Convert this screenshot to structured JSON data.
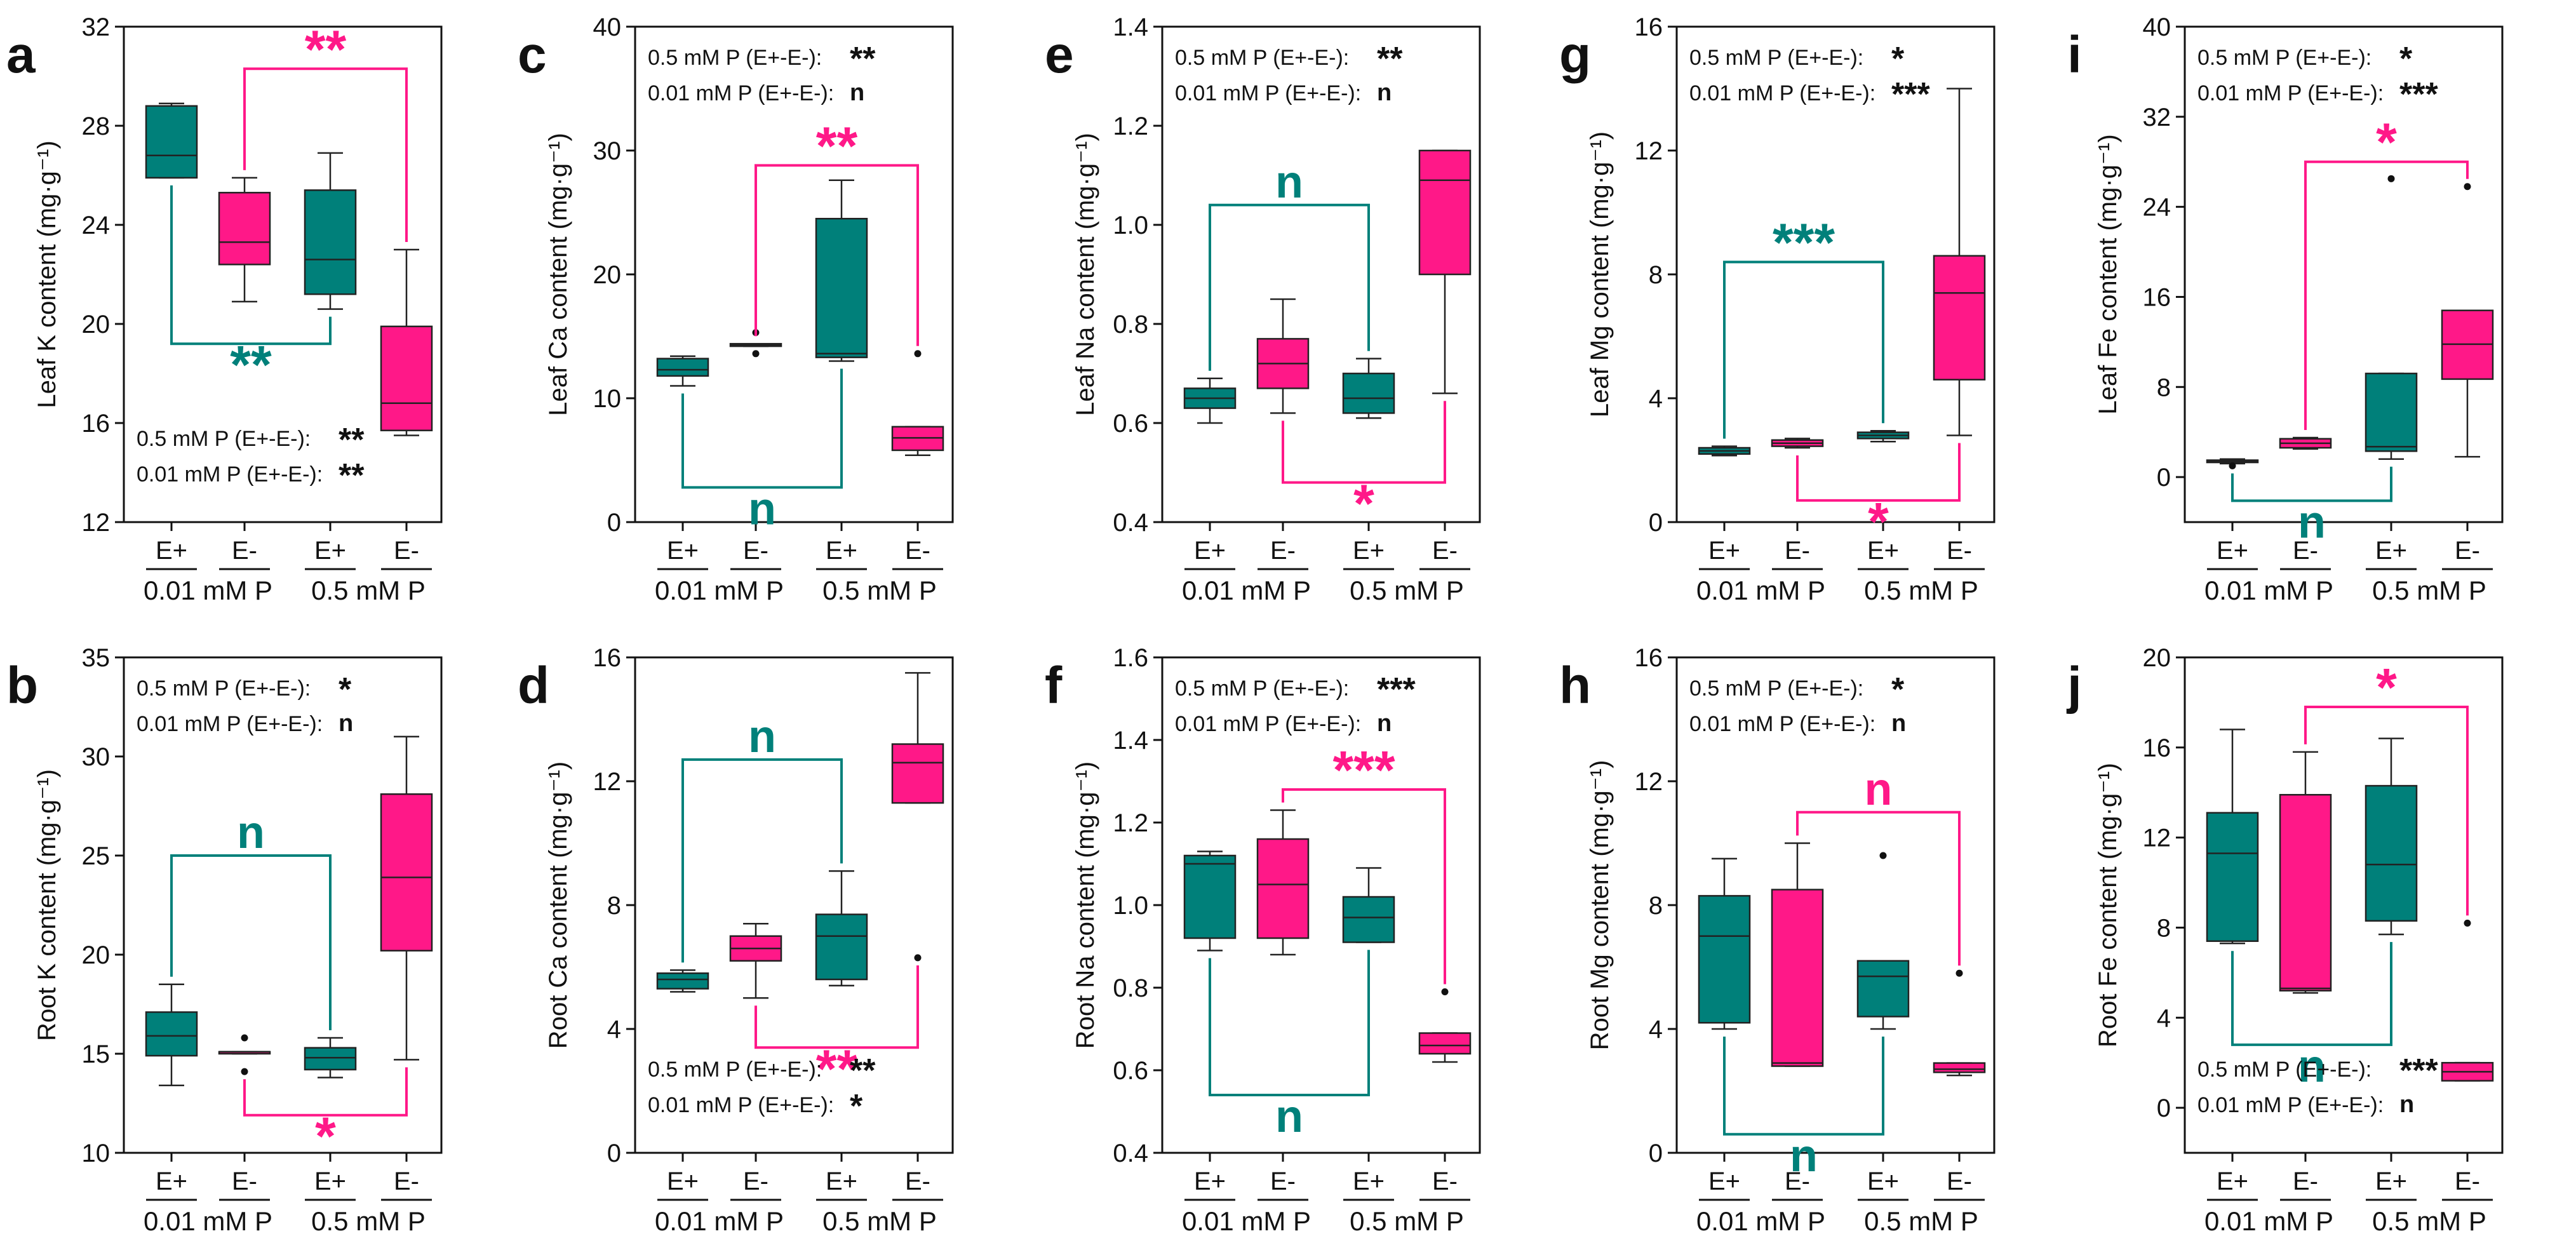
{
  "colors": {
    "e_plus": "#00807A",
    "e_minus": "#FF1888",
    "axis": "#111111",
    "stat_text": "#111111"
  },
  "group_labels": {
    "low": "0.01 mM P",
    "high": "0.5 mM P"
  },
  "treatment_labels": [
    "E+",
    "E-",
    "E+",
    "E-"
  ],
  "chart_data": [
    {
      "panel": "a",
      "type": "box",
      "ylabel": "Leaf K content (mg·g⁻¹)",
      "ylim": [
        12,
        32
      ],
      "yticks": [
        12,
        16,
        20,
        24,
        28,
        32
      ],
      "boxes": [
        {
          "label": "E+",
          "group": "0.01 mM P",
          "min": 25.9,
          "q1": 25.9,
          "median": 26.8,
          "q3": 28.8,
          "max": 28.9,
          "outliers": []
        },
        {
          "label": "E-",
          "group": "0.01 mM P",
          "min": 20.9,
          "q1": 22.4,
          "median": 23.3,
          "q3": 25.3,
          "max": 25.9,
          "outliers": []
        },
        {
          "label": "E+",
          "group": "0.5 mM P",
          "min": 20.6,
          "q1": 21.2,
          "median": 22.6,
          "q3": 25.4,
          "max": 26.9,
          "outliers": []
        },
        {
          "label": "E-",
          "group": "0.5 mM P",
          "min": 15.5,
          "q1": 15.7,
          "median": 16.8,
          "q3": 19.9,
          "max": 23.0,
          "outliers": []
        }
      ],
      "brackets": [
        {
          "pair": [
            0,
            2
          ],
          "side": "below",
          "y": 19.2,
          "label": "**",
          "color": "e_plus"
        },
        {
          "pair": [
            1,
            3
          ],
          "side": "above",
          "y": 30.3,
          "label": "**",
          "color": "e_minus"
        }
      ],
      "legend_pos": "bottom-left",
      "stats": [
        {
          "label": "0.5 mM P (E+-E-):",
          "sig": "**"
        },
        {
          "label": "0.01 mM P (E+-E-):",
          "sig": "**"
        }
      ]
    },
    {
      "panel": "b",
      "type": "box",
      "ylabel": "Root K content (mg·g⁻¹)",
      "ylim": [
        10,
        35
      ],
      "yticks": [
        10,
        15,
        20,
        25,
        30,
        35
      ],
      "boxes": [
        {
          "label": "E+",
          "group": "0.01 mM P",
          "min": 13.4,
          "q1": 14.9,
          "median": 15.9,
          "q3": 17.1,
          "max": 18.5,
          "outliers": []
        },
        {
          "label": "E-",
          "group": "0.01 mM P",
          "min": 15.0,
          "q1": 15.0,
          "median": 15.1,
          "q3": 15.1,
          "max": 15.1,
          "outliers": [
            15.8,
            14.1
          ]
        },
        {
          "label": "E+",
          "group": "0.5 mM P",
          "min": 13.8,
          "q1": 14.2,
          "median": 14.8,
          "q3": 15.3,
          "max": 15.8,
          "outliers": []
        },
        {
          "label": "E-",
          "group": "0.5 mM P",
          "min": 14.7,
          "q1": 20.2,
          "median": 23.9,
          "q3": 28.1,
          "max": 31.0,
          "outliers": []
        }
      ],
      "brackets": [
        {
          "pair": [
            0,
            2
          ],
          "side": "above",
          "y": 25.0,
          "label": "n",
          "color": "e_plus"
        },
        {
          "pair": [
            1,
            3
          ],
          "side": "below",
          "y": 11.9,
          "label": "*",
          "color": "e_minus"
        }
      ],
      "legend_pos": "top-left",
      "stats": [
        {
          "label": "0.5 mM P (E+-E-):",
          "sig": "*"
        },
        {
          "label": "0.01 mM P (E+-E-):",
          "sig": "n"
        }
      ]
    },
    {
      "panel": "c",
      "type": "box",
      "ylabel": "Leaf Ca content (mg·g⁻¹)",
      "ylim": [
        0,
        40
      ],
      "yticks": [
        0,
        10,
        20,
        30,
        40
      ],
      "boxes": [
        {
          "label": "E+",
          "group": "0.01 mM P",
          "min": 11.0,
          "q1": 11.8,
          "median": 12.3,
          "q3": 13.2,
          "max": 13.4,
          "outliers": []
        },
        {
          "label": "E-",
          "group": "0.01 mM P",
          "min": 14.2,
          "q1": 14.2,
          "median": 14.3,
          "q3": 14.4,
          "max": 14.4,
          "outliers": [
            15.3,
            13.6
          ]
        },
        {
          "label": "E+",
          "group": "0.5 mM P",
          "min": 13.0,
          "q1": 13.3,
          "median": 13.6,
          "q3": 24.5,
          "max": 27.6,
          "outliers": []
        },
        {
          "label": "E-",
          "group": "0.5 mM P",
          "min": 5.4,
          "q1": 5.8,
          "median": 6.8,
          "q3": 7.7,
          "max": 7.7,
          "outliers": [
            13.6
          ]
        }
      ],
      "brackets": [
        {
          "pair": [
            0,
            2
          ],
          "side": "below",
          "y": 2.8,
          "label": "n",
          "color": "e_plus"
        },
        {
          "pair": [
            1,
            3
          ],
          "side": "above",
          "y": 28.8,
          "label": "**",
          "color": "e_minus"
        }
      ],
      "legend_pos": "top-left",
      "stats": [
        {
          "label": "0.5 mM P (E+-E-):",
          "sig": "**"
        },
        {
          "label": "0.01 mM P (E+-E-):",
          "sig": "n"
        }
      ]
    },
    {
      "panel": "d",
      "type": "box",
      "ylabel": "Root Ca content (mg·g⁻¹)",
      "ylim": [
        0,
        16
      ],
      "yticks": [
        0,
        4,
        8,
        12,
        16
      ],
      "boxes": [
        {
          "label": "E+",
          "group": "0.01 mM P",
          "min": 5.2,
          "q1": 5.3,
          "median": 5.6,
          "q3": 5.8,
          "max": 5.9,
          "outliers": []
        },
        {
          "label": "E-",
          "group": "0.01 mM P",
          "min": 5.0,
          "q1": 6.2,
          "median": 6.6,
          "q3": 7.0,
          "max": 7.4,
          "outliers": []
        },
        {
          "label": "E+",
          "group": "0.5 mM P",
          "min": 5.4,
          "q1": 5.6,
          "median": 7.0,
          "q3": 7.7,
          "max": 9.1,
          "outliers": []
        },
        {
          "label": "E-",
          "group": "0.5 mM P",
          "min": 11.3,
          "q1": 11.3,
          "median": 12.6,
          "q3": 13.2,
          "max": 15.5,
          "outliers": [
            6.3
          ]
        }
      ],
      "brackets": [
        {
          "pair": [
            0,
            2
          ],
          "side": "above",
          "y": 12.7,
          "label": "n",
          "color": "e_plus"
        },
        {
          "pair": [
            1,
            3
          ],
          "side": "below",
          "y": 3.4,
          "label": "**",
          "color": "e_minus"
        }
      ],
      "legend_pos": "bottom-left",
      "stats": [
        {
          "label": "0.5 mM P (E+-E-):",
          "sig": "**"
        },
        {
          "label": "0.01 mM P (E+-E-):",
          "sig": "*"
        }
      ]
    },
    {
      "panel": "e",
      "type": "box",
      "ylabel": "Leaf Na content (mg·g⁻¹)",
      "ylim": [
        0.4,
        1.4
      ],
      "yticks": [
        0.4,
        0.6,
        0.8,
        1.0,
        1.2,
        1.4
      ],
      "boxes": [
        {
          "label": "E+",
          "group": "0.01 mM P",
          "min": 0.6,
          "q1": 0.63,
          "median": 0.65,
          "q3": 0.67,
          "max": 0.69,
          "outliers": []
        },
        {
          "label": "E-",
          "group": "0.01 mM P",
          "min": 0.62,
          "q1": 0.67,
          "median": 0.72,
          "q3": 0.77,
          "max": 0.85,
          "outliers": []
        },
        {
          "label": "E+",
          "group": "0.5 mM P",
          "min": 0.61,
          "q1": 0.62,
          "median": 0.65,
          "q3": 0.7,
          "max": 0.73,
          "outliers": []
        },
        {
          "label": "E-",
          "group": "0.5 mM P",
          "min": 0.66,
          "q1": 0.9,
          "median": 1.09,
          "q3": 1.15,
          "max": 1.15,
          "outliers": []
        }
      ],
      "brackets": [
        {
          "pair": [
            0,
            2
          ],
          "side": "above",
          "y": 1.04,
          "label": "n",
          "color": "e_plus"
        },
        {
          "pair": [
            1,
            3
          ],
          "side": "below",
          "y": 0.48,
          "label": "*",
          "color": "e_minus"
        }
      ],
      "legend_pos": "top-left",
      "stats": [
        {
          "label": "0.5 mM P (E+-E-):",
          "sig": "**"
        },
        {
          "label": "0.01 mM P (E+-E-):",
          "sig": "n"
        }
      ]
    },
    {
      "panel": "f",
      "type": "box",
      "ylabel": "Root Na content (mg·g⁻¹)",
      "ylim": [
        0.4,
        1.6
      ],
      "yticks": [
        0.4,
        0.6,
        0.8,
        1.0,
        1.2,
        1.4,
        1.6
      ],
      "boxes": [
        {
          "label": "E+",
          "group": "0.01 mM P",
          "min": 0.89,
          "q1": 0.92,
          "median": 1.1,
          "q3": 1.12,
          "max": 1.13,
          "outliers": []
        },
        {
          "label": "E-",
          "group": "0.01 mM P",
          "min": 0.88,
          "q1": 0.92,
          "median": 1.05,
          "q3": 1.16,
          "max": 1.23,
          "outliers": []
        },
        {
          "label": "E+",
          "group": "0.5 mM P",
          "min": 0.91,
          "q1": 0.91,
          "median": 0.97,
          "q3": 1.02,
          "max": 1.09,
          "outliers": []
        },
        {
          "label": "E-",
          "group": "0.5 mM P",
          "min": 0.62,
          "q1": 0.64,
          "median": 0.66,
          "q3": 0.69,
          "max": 0.69,
          "outliers": [
            0.79
          ]
        }
      ],
      "brackets": [
        {
          "pair": [
            0,
            2
          ],
          "side": "below",
          "y": 0.54,
          "label": "n",
          "color": "e_plus"
        },
        {
          "pair": [
            1,
            3
          ],
          "side": "above",
          "y": 1.28,
          "label": "***",
          "color": "e_minus"
        }
      ],
      "legend_pos": "top-left",
      "stats": [
        {
          "label": "0.5 mM P (E+-E-):",
          "sig": "***"
        },
        {
          "label": "0.01 mM P (E+-E-):",
          "sig": "n"
        }
      ]
    },
    {
      "panel": "g",
      "type": "box",
      "ylabel": "Leaf Mg content (mg·g⁻¹)",
      "ylim": [
        0,
        16
      ],
      "yticks": [
        0,
        4,
        8,
        12,
        16
      ],
      "boxes": [
        {
          "label": "E+",
          "group": "0.01 mM P",
          "min": 2.15,
          "q1": 2.2,
          "median": 2.3,
          "q3": 2.4,
          "max": 2.45,
          "outliers": []
        },
        {
          "label": "E-",
          "group": "0.01 mM P",
          "min": 2.4,
          "q1": 2.45,
          "median": 2.55,
          "q3": 2.65,
          "max": 2.7,
          "outliers": []
        },
        {
          "label": "E+",
          "group": "0.5 mM P",
          "min": 2.6,
          "q1": 2.7,
          "median": 2.8,
          "q3": 2.9,
          "max": 2.95,
          "outliers": []
        },
        {
          "label": "E-",
          "group": "0.5 mM P",
          "min": 2.8,
          "q1": 4.6,
          "median": 7.4,
          "q3": 8.6,
          "max": 14.0,
          "outliers": []
        }
      ],
      "brackets": [
        {
          "pair": [
            0,
            2
          ],
          "side": "above",
          "y": 8.4,
          "label": "***",
          "color": "e_plus"
        },
        {
          "pair": [
            1,
            3
          ],
          "side": "below",
          "y": 0.7,
          "label": "*",
          "color": "e_minus"
        }
      ],
      "legend_pos": "top-left",
      "stats": [
        {
          "label": "0.5 mM P (E+-E-):",
          "sig": "*"
        },
        {
          "label": "0.01 mM P (E+-E-):",
          "sig": "***"
        }
      ]
    },
    {
      "panel": "h",
      "type": "box",
      "ylabel": "Root Mg content (mg·g⁻¹)",
      "ylim": [
        0,
        16
      ],
      "yticks": [
        0,
        4,
        8,
        12,
        16
      ],
      "boxes": [
        {
          "label": "E+",
          "group": "0.01 mM P",
          "min": 4.0,
          "q1": 4.2,
          "median": 7.0,
          "q3": 8.3,
          "max": 9.5,
          "outliers": []
        },
        {
          "label": "E-",
          "group": "0.01 mM P",
          "min": 2.8,
          "q1": 2.8,
          "median": 2.9,
          "q3": 8.5,
          "max": 10.0,
          "outliers": []
        },
        {
          "label": "E+",
          "group": "0.5 mM P",
          "min": 4.0,
          "q1": 4.4,
          "median": 5.7,
          "q3": 6.2,
          "max": 6.2,
          "outliers": [
            9.6
          ]
        },
        {
          "label": "E-",
          "group": "0.5 mM P",
          "min": 2.5,
          "q1": 2.6,
          "median": 2.7,
          "q3": 2.9,
          "max": 2.9,
          "outliers": [
            5.8
          ]
        }
      ],
      "brackets": [
        {
          "pair": [
            0,
            2
          ],
          "side": "below",
          "y": 0.6,
          "label": "n",
          "color": "e_plus"
        },
        {
          "pair": [
            1,
            3
          ],
          "side": "above",
          "y": 11.0,
          "label": "n",
          "color": "e_minus"
        }
      ],
      "legend_pos": "top-left",
      "stats": [
        {
          "label": "0.5 mM P (E+-E-):",
          "sig": "*"
        },
        {
          "label": "0.01 mM P (E+-E-):",
          "sig": "n"
        }
      ]
    },
    {
      "panel": "i",
      "type": "box",
      "ylabel": "Leaf Fe content (mg·g⁻¹)",
      "ylim": [
        -4,
        40
      ],
      "yticks": [
        0,
        8,
        16,
        24,
        32,
        40
      ],
      "boxes": [
        {
          "label": "E+",
          "group": "0.01 mM P",
          "min": 1.2,
          "q1": 1.3,
          "median": 1.4,
          "q3": 1.5,
          "max": 1.6,
          "outliers": [
            1.0
          ]
        },
        {
          "label": "E-",
          "group": "0.01 mM P",
          "min": 2.5,
          "q1": 2.6,
          "median": 3.0,
          "q3": 3.4,
          "max": 3.5,
          "outliers": []
        },
        {
          "label": "E+",
          "group": "0.5 mM P",
          "min": 1.6,
          "q1": 2.3,
          "median": 2.7,
          "q3": 9.2,
          "max": 9.2,
          "outliers": [
            26.5
          ]
        },
        {
          "label": "E-",
          "group": "0.5 mM P",
          "min": 1.8,
          "q1": 8.7,
          "median": 11.8,
          "q3": 14.8,
          "max": 14.8,
          "outliers": [
            25.8
          ]
        }
      ],
      "brackets": [
        {
          "pair": [
            0,
            2
          ],
          "side": "below",
          "y": -2.1,
          "label": "n",
          "color": "e_plus"
        },
        {
          "pair": [
            1,
            3
          ],
          "side": "above",
          "y": 28.0,
          "label": "*",
          "color": "e_minus"
        }
      ],
      "legend_pos": "top-left",
      "stats": [
        {
          "label": "0.5 mM P (E+-E-):",
          "sig": "*"
        },
        {
          "label": "0.01 mM P (E+-E-):",
          "sig": "***"
        }
      ]
    },
    {
      "panel": "j",
      "type": "box",
      "ylabel": "Root Fe content (mg·g⁻¹)",
      "ylim": [
        -2,
        20
      ],
      "yticks": [
        0,
        4,
        8,
        12,
        16,
        20
      ],
      "boxes": [
        {
          "label": "E+",
          "group": "0.01 mM P",
          "min": 7.3,
          "q1": 7.4,
          "median": 11.3,
          "q3": 13.1,
          "max": 16.8,
          "outliers": []
        },
        {
          "label": "E-",
          "group": "0.01 mM P",
          "min": 5.1,
          "q1": 5.2,
          "median": 5.3,
          "q3": 13.9,
          "max": 15.8,
          "outliers": []
        },
        {
          "label": "E+",
          "group": "0.5 mM P",
          "min": 7.7,
          "q1": 8.3,
          "median": 10.8,
          "q3": 14.3,
          "max": 16.4,
          "outliers": []
        },
        {
          "label": "E-",
          "group": "0.5 mM P",
          "min": 1.2,
          "q1": 1.2,
          "median": 1.6,
          "q3": 2.0,
          "max": 2.0,
          "outliers": [
            8.2
          ]
        }
      ],
      "brackets": [
        {
          "pair": [
            0,
            2
          ],
          "side": "below",
          "y": 2.8,
          "label": "n",
          "color": "e_plus"
        },
        {
          "pair": [
            1,
            3
          ],
          "side": "above",
          "y": 17.8,
          "label": "*",
          "color": "e_minus"
        }
      ],
      "legend_pos": "bottom-left",
      "stats": [
        {
          "label": "0.5 mM P (E+-E-):",
          "sig": "***"
        },
        {
          "label": "0.01 mM P (E+-E-):",
          "sig": "n"
        }
      ]
    }
  ]
}
